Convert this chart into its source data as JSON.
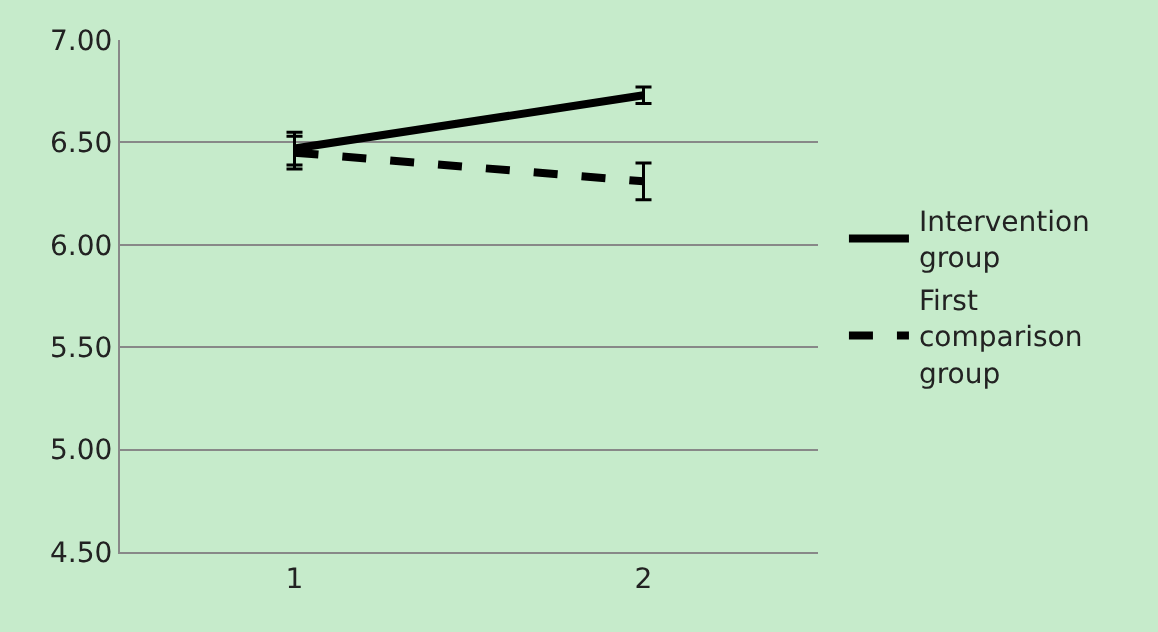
{
  "chart_data": {
    "type": "line",
    "categories": [
      "1",
      "2"
    ],
    "series": [
      {
        "name": "Intervention group",
        "color": "#000000",
        "values": [
          6.47,
          6.73
        ],
        "errors": [
          0.08,
          0.04
        ],
        "line_style": "solid"
      },
      {
        "name": "First comparison group",
        "color": "#000000",
        "values": [
          6.45,
          6.31
        ],
        "errors": [
          0.08,
          0.09
        ],
        "line_style": "dashed"
      }
    ],
    "ylim": [
      4.5,
      7.0
    ],
    "yticks": [
      {
        "value": 4.5,
        "label": "4.50"
      },
      {
        "value": 5.0,
        "label": "5.00"
      },
      {
        "value": 5.5,
        "label": "5.50"
      },
      {
        "value": 6.0,
        "label": "6.00"
      },
      {
        "value": 6.5,
        "label": "6.50"
      },
      {
        "value": 7.0,
        "label": "7.00"
      }
    ],
    "grid": "y",
    "legend": "right"
  }
}
